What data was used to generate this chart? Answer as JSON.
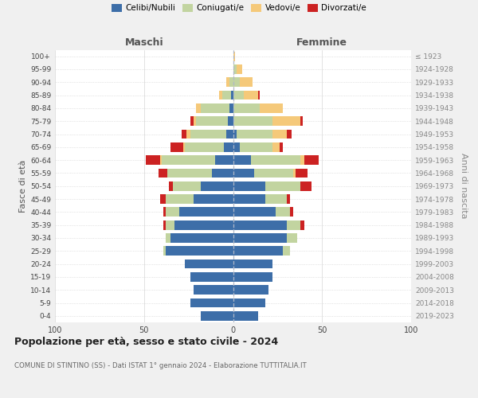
{
  "age_groups": [
    "0-4",
    "5-9",
    "10-14",
    "15-19",
    "20-24",
    "25-29",
    "30-34",
    "35-39",
    "40-44",
    "45-49",
    "50-54",
    "55-59",
    "60-64",
    "65-69",
    "70-74",
    "75-79",
    "80-84",
    "85-89",
    "90-94",
    "95-99",
    "100+"
  ],
  "birth_years": [
    "2019-2023",
    "2014-2018",
    "2009-2013",
    "2004-2008",
    "1999-2003",
    "1994-1998",
    "1989-1993",
    "1984-1988",
    "1979-1983",
    "1974-1978",
    "1969-1973",
    "1964-1968",
    "1959-1963",
    "1954-1958",
    "1949-1953",
    "1944-1948",
    "1939-1943",
    "1934-1938",
    "1929-1933",
    "1924-1928",
    "≤ 1923"
  ],
  "colors": {
    "celibe": "#3d6ea8",
    "coniugato": "#c2d4a0",
    "vedovo": "#f5c97a",
    "divorziato": "#cc2222"
  },
  "males": {
    "celibe": [
      18,
      24,
      22,
      24,
      27,
      38,
      35,
      33,
      30,
      22,
      18,
      12,
      10,
      5,
      4,
      3,
      2,
      1,
      0,
      0,
      0
    ],
    "coniugato": [
      0,
      0,
      0,
      0,
      0,
      1,
      3,
      5,
      8,
      16,
      16,
      25,
      30,
      22,
      20,
      18,
      16,
      5,
      2,
      0,
      0
    ],
    "vedovo": [
      0,
      0,
      0,
      0,
      0,
      0,
      0,
      0,
      0,
      0,
      0,
      0,
      1,
      1,
      2,
      1,
      3,
      2,
      2,
      0,
      0
    ],
    "divorziato": [
      0,
      0,
      0,
      0,
      0,
      0,
      0,
      1,
      1,
      3,
      2,
      5,
      8,
      7,
      3,
      2,
      0,
      0,
      0,
      0,
      0
    ]
  },
  "females": {
    "nubile": [
      14,
      18,
      20,
      22,
      22,
      28,
      30,
      30,
      24,
      18,
      18,
      12,
      10,
      4,
      2,
      0,
      0,
      0,
      0,
      0,
      0
    ],
    "coniugata": [
      0,
      0,
      0,
      0,
      0,
      4,
      6,
      8,
      8,
      12,
      20,
      22,
      28,
      18,
      20,
      22,
      15,
      6,
      4,
      2,
      0
    ],
    "vedova": [
      0,
      0,
      0,
      0,
      0,
      0,
      0,
      0,
      0,
      0,
      0,
      1,
      2,
      4,
      8,
      16,
      13,
      8,
      7,
      3,
      1
    ],
    "divorziata": [
      0,
      0,
      0,
      0,
      0,
      0,
      0,
      2,
      2,
      2,
      6,
      7,
      8,
      2,
      3,
      1,
      0,
      1,
      0,
      0,
      0
    ]
  },
  "xlim": 100,
  "title": "Popolazione per età, sesso e stato civile - 2024",
  "subtitle": "COMUNE DI STINTINO (SS) - Dati ISTAT 1° gennaio 2024 - Elaborazione TUTTITALIA.IT",
  "xlabel_left": "Maschi",
  "xlabel_right": "Femmine",
  "ylabel_left": "Fasce di età",
  "ylabel_right": "Anni di nascita",
  "background_color": "#f0f0f0",
  "plot_bg_color": "#ffffff"
}
